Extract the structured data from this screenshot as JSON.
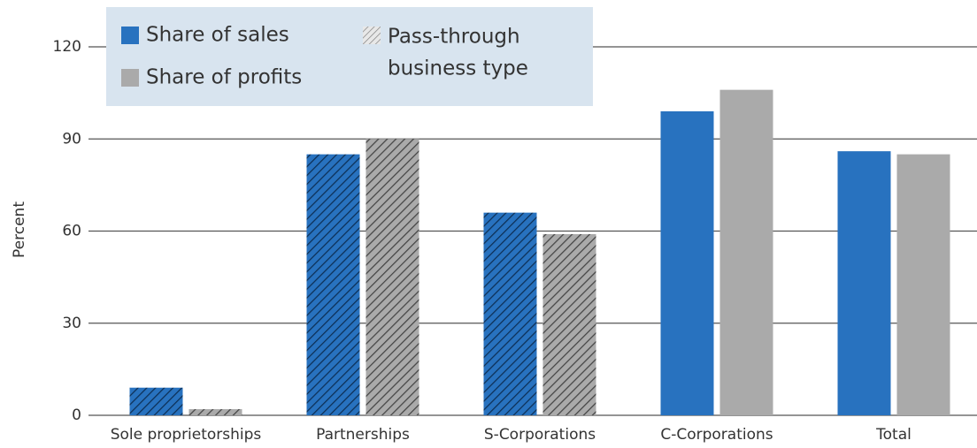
{
  "chart_data": {
    "type": "bar",
    "y_label": "Percent",
    "categories": [
      "Sole proprietorships",
      "Partnerships",
      "S-Corporations",
      "C-Corporations",
      "Total"
    ],
    "series": [
      {
        "name": "Share of sales",
        "color": "#2872bf",
        "values": [
          9,
          85,
          66,
          99,
          86
        ]
      },
      {
        "name": "Share of profits",
        "color": "#aaaaaa",
        "values": [
          2,
          90,
          59,
          106,
          85
        ]
      }
    ],
    "hatch_legend": [
      "Pass-through",
      "business type"
    ],
    "hatched": [
      true,
      true,
      true,
      false,
      false
    ],
    "ylim": [
      0,
      120
    ],
    "yticks": [
      0,
      30,
      60,
      90,
      120
    ],
    "grid": true
  }
}
